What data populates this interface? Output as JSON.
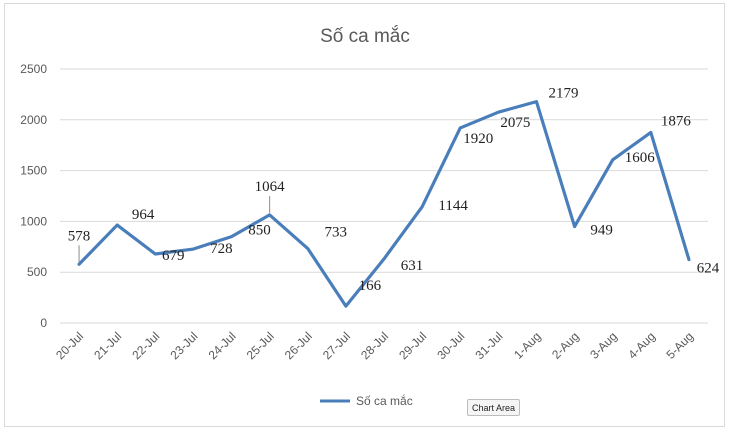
{
  "chart_data": {
    "type": "line",
    "title": "Số ca mắc",
    "categories": [
      "20-Jul",
      "21-Jul",
      "22-Jul",
      "23-Jul",
      "24-Jul",
      "25-Jul",
      "26-Jul",
      "27-Jul",
      "28-Jul",
      "29-Jul",
      "30-Jul",
      "31-Jul",
      "1-Aug",
      "2-Aug",
      "3-Aug",
      "4-Aug",
      "5-Aug"
    ],
    "series": [
      {
        "name": "Số ca mắc",
        "values": [
          578,
          964,
          679,
          728,
          850,
          1064,
          733,
          166,
          631,
          1144,
          1920,
          2075,
          2179,
          949,
          1606,
          1876,
          624
        ],
        "color": "#4a7ebb"
      }
    ],
    "ylim": [
      0,
      2500
    ],
    "yticks": [
      "0",
      "500",
      "1000",
      "1500",
      "2000",
      "2500"
    ],
    "grid": true,
    "legend": "bottom"
  },
  "tooltip": {
    "label": "Chart Area"
  }
}
